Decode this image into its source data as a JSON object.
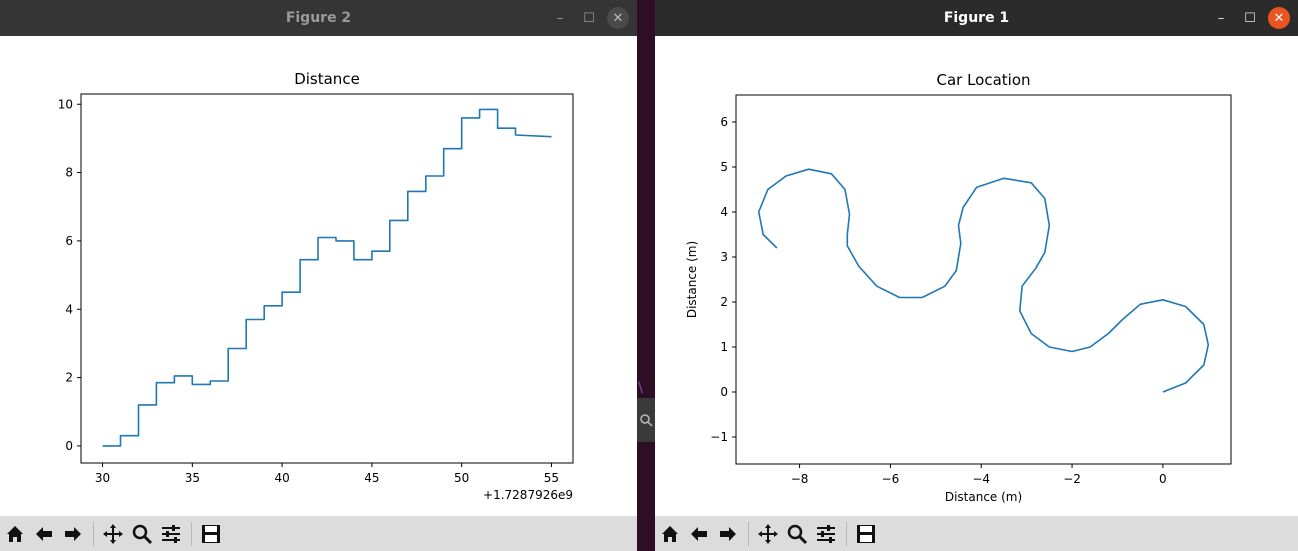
{
  "figure2": {
    "window_title": "Figure 2",
    "controls": {
      "minimize": "–",
      "maximize": "☐",
      "close": "✕"
    },
    "chart_data": {
      "type": "line",
      "title": "Distance",
      "xlabel": "",
      "ylabel": "",
      "x_offset_label": "+1.7287926e9",
      "xlim": [
        28.8,
        56.2
      ],
      "ylim": [
        -0.5,
        10.3
      ],
      "xticks": [
        30,
        35,
        40,
        45,
        50,
        55
      ],
      "yticks": [
        0,
        2,
        4,
        6,
        8,
        10
      ],
      "color": "#1f77b4",
      "series": [
        {
          "x": [
            30,
            31,
            31,
            32,
            32,
            33,
            33,
            34,
            34,
            35,
            35,
            36,
            36,
            37,
            37,
            38,
            38,
            39,
            39,
            40,
            40,
            41,
            41,
            42,
            42,
            43,
            43,
            44,
            44,
            45,
            45,
            46,
            46,
            47,
            47,
            48,
            48,
            49,
            49,
            50,
            50,
            51,
            51,
            52,
            52,
            53,
            53,
            55
          ],
          "y": [
            0,
            0,
            0.3,
            0.3,
            1.2,
            1.2,
            1.85,
            1.85,
            2.05,
            2.05,
            1.8,
            1.8,
            1.9,
            1.9,
            2.85,
            2.85,
            3.7,
            3.7,
            4.1,
            4.1,
            4.5,
            4.5,
            5.45,
            5.45,
            6.1,
            6.1,
            6.0,
            6.0,
            5.45,
            5.45,
            5.7,
            5.7,
            6.6,
            6.6,
            7.45,
            7.45,
            7.9,
            7.9,
            8.7,
            8.7,
            9.6,
            9.6,
            9.85,
            9.85,
            9.3,
            9.3,
            9.1,
            9.05
          ]
        }
      ]
    }
  },
  "figure1": {
    "window_title": "Figure 1",
    "controls": {
      "minimize": "–",
      "maximize": "☐",
      "close": "✕"
    },
    "chart_data": {
      "type": "line",
      "title": "Car Location",
      "xlabel": "Distance (m)",
      "ylabel": "Distance (m)",
      "xlim": [
        -9.4,
        1.5
      ],
      "ylim": [
        -1.6,
        6.6
      ],
      "xticks": [
        -8,
        -6,
        -4,
        -2,
        0
      ],
      "yticks": [
        -1,
        0,
        1,
        2,
        3,
        4,
        5,
        6
      ],
      "color": "#1f77b4",
      "series": [
        {
          "x": [
            0,
            0.5,
            0.9,
            1.0,
            0.9,
            0.5,
            0,
            -0.5,
            -0.9,
            -1.2,
            -1.6,
            -2.0,
            -2.5,
            -2.9,
            -3.15,
            -3.1,
            -2.8,
            -2.6,
            -2.5,
            -2.6,
            -2.9,
            -3.5,
            -4.1,
            -4.4,
            -4.5,
            -4.45,
            -4.55,
            -4.8,
            -5.3,
            -5.8,
            -6.3,
            -6.7,
            -6.95,
            -6.95,
            -6.9,
            -7.0,
            -7.3,
            -7.8,
            -8.3,
            -8.7,
            -8.9,
            -8.8,
            -8.5
          ],
          "y": [
            0,
            0.2,
            0.6,
            1.05,
            1.5,
            1.9,
            2.05,
            1.95,
            1.6,
            1.3,
            1.0,
            0.9,
            1.0,
            1.3,
            1.8,
            2.35,
            2.75,
            3.1,
            3.7,
            4.3,
            4.65,
            4.75,
            4.55,
            4.1,
            3.7,
            3.3,
            2.7,
            2.35,
            2.1,
            2.1,
            2.35,
            2.8,
            3.25,
            3.5,
            3.95,
            4.5,
            4.85,
            4.95,
            4.8,
            4.5,
            4.0,
            3.5,
            3.2
          ]
        }
      ]
    }
  },
  "toolbar": {
    "home": "home-icon",
    "back": "back-arrow-icon",
    "forward": "forward-arrow-icon",
    "pan": "pan-icon",
    "zoom": "zoom-icon",
    "subplots": "subplots-icon",
    "save": "save-icon"
  }
}
